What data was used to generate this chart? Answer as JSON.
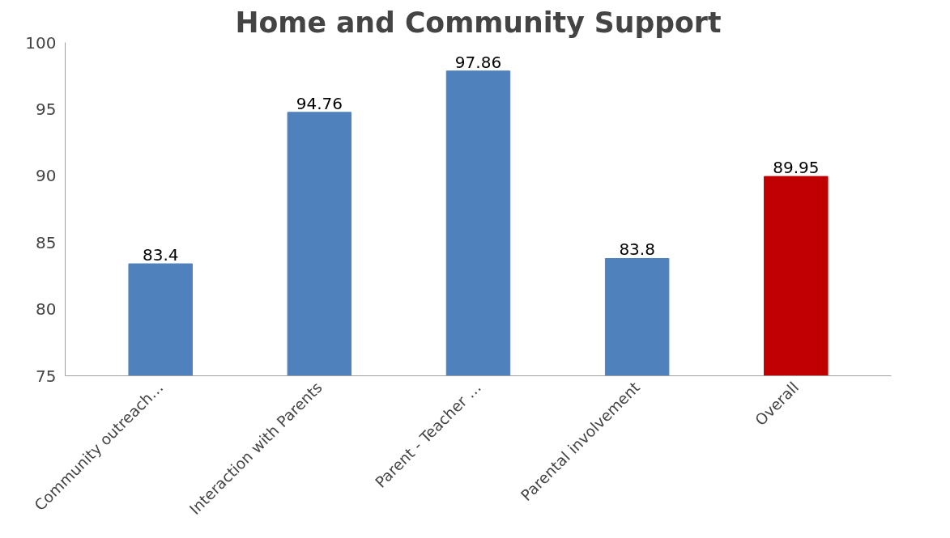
{
  "chart_data": {
    "type": "bar",
    "title": "Home and Community Support",
    "categories": [
      "Community outreach…",
      "Interaction with Parents",
      "Parent - Teacher …",
      "Parental involvement",
      "Overall"
    ],
    "values": [
      83.4,
      94.76,
      97.86,
      83.8,
      89.95
    ],
    "colors": [
      "#4f81bd",
      "#4f81bd",
      "#4f81bd",
      "#4f81bd",
      "#c00000"
    ],
    "ylim": [
      75,
      100
    ],
    "yticks": [
      75,
      80,
      85,
      90,
      95,
      100
    ],
    "grid": false,
    "data_labels": true
  }
}
